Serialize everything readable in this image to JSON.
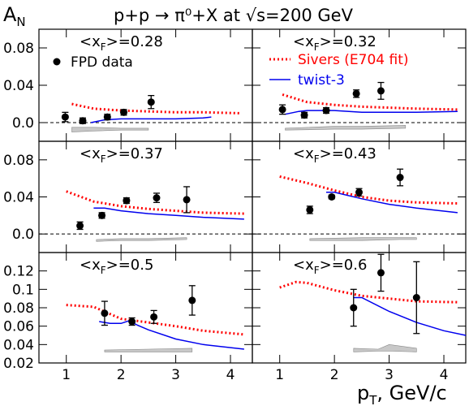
{
  "figure": {
    "ylabel": "A",
    "ylabel_sub": "N",
    "title": "p+p → π⁰+X at √s=200 GeV",
    "xlabel": "p",
    "xlabel_sub": "T",
    "xlabel_unit": ", GeV/c",
    "colors": {
      "data": "#000000",
      "sivers": "#ff0000",
      "twist3": "#0000ee",
      "band": "#c8c8c8"
    },
    "legend": {
      "data_label": "FPD data",
      "sivers_label": "Sivers (E704 fit)",
      "twist3_label": "twist-3"
    }
  },
  "chart_data": [
    {
      "type": "scatter",
      "panel": "top-left",
      "label_prefix": "<x",
      "label_sub": "F",
      "label_value": ">=0.28",
      "xlim": [
        0.5,
        4.4
      ],
      "ylim": [
        -0.02,
        0.1
      ],
      "yticks": [
        "0.0",
        "0.04",
        "0.08"
      ],
      "ytick_values": [
        0.0,
        0.04,
        0.08
      ],
      "xticks": [],
      "xtick_values": [
        1,
        2,
        3,
        4
      ],
      "zero_line": true,
      "points": {
        "x": [
          0.98,
          1.3,
          1.75,
          2.05,
          2.55
        ],
        "y": [
          0.006,
          0.002,
          0.006,
          0.011,
          0.022
        ],
        "err": [
          0.005,
          0.003,
          0.003,
          0.003,
          0.007
        ]
      },
      "sivers": {
        "x": [
          1.1,
          1.5,
          2.0,
          2.5,
          3.0,
          3.5,
          4.2
        ],
        "y": [
          0.02,
          0.015,
          0.013,
          0.012,
          0.011,
          0.011,
          0.01
        ]
      },
      "twist3": {
        "x": [
          1.45,
          1.7,
          2.0,
          2.5,
          3.0,
          3.5,
          3.65
        ],
        "y": [
          0.0,
          0.003,
          0.004,
          0.004,
          0.004,
          0.005,
          0.006
        ]
      },
      "band": {
        "x": [
          1.1,
          1.5,
          2.0,
          2.5
        ],
        "lower": [
          -0.01,
          -0.009,
          -0.008,
          -0.008
        ],
        "upper": [
          -0.005,
          -0.005,
          -0.006,
          -0.006
        ]
      }
    },
    {
      "type": "scatter",
      "panel": "top-right",
      "label_prefix": "<x",
      "label_sub": "F",
      "label_value": ">=0.32",
      "xlim": [
        0.5,
        4.4
      ],
      "ylim": [
        -0.02,
        0.1
      ],
      "yticks": [],
      "ytick_values": [
        0.0,
        0.04,
        0.08
      ],
      "xticks": [],
      "xtick_values": [
        1,
        2,
        3,
        4
      ],
      "zero_line": true,
      "points": {
        "x": [
          1.05,
          1.45,
          1.85,
          2.4,
          2.85
        ],
        "y": [
          0.014,
          0.008,
          0.013,
          0.031,
          0.034
        ],
        "err": [
          0.005,
          0.003,
          0.003,
          0.004,
          0.009
        ]
      },
      "sivers": {
        "x": [
          1.05,
          1.5,
          2.0,
          2.5,
          3.0,
          3.5,
          4.25
        ],
        "y": [
          0.03,
          0.022,
          0.019,
          0.017,
          0.016,
          0.015,
          0.014
        ]
      },
      "twist3": {
        "x": [
          1.1,
          1.35,
          1.5,
          2.0,
          2.5,
          3.0,
          3.5,
          4.25
        ],
        "y": [
          0.009,
          0.012,
          0.013,
          0.013,
          0.011,
          0.011,
          0.011,
          0.012
        ]
      },
      "band": {
        "x": [
          1.1,
          2.0,
          2.5,
          3.3
        ],
        "lower": [
          -0.008,
          -0.007,
          -0.007,
          -0.006
        ],
        "upper": [
          -0.006,
          -0.004,
          -0.004,
          -0.003
        ]
      }
    },
    {
      "type": "scatter",
      "panel": "middle-left",
      "label_prefix": "<x",
      "label_sub": "F",
      "label_value": ">=0.37",
      "xlim": [
        0.5,
        4.4
      ],
      "ylim": [
        -0.02,
        0.1
      ],
      "yticks": [
        "0.0",
        "0.04",
        "0.08"
      ],
      "ytick_values": [
        0.0,
        0.04,
        0.08
      ],
      "xticks": [],
      "xtick_values": [
        1,
        2,
        3,
        4
      ],
      "zero_line": true,
      "points": {
        "x": [
          1.25,
          1.65,
          2.1,
          2.65,
          3.2
        ],
        "y": [
          0.009,
          0.02,
          0.036,
          0.039,
          0.037
        ],
        "err": [
          0.004,
          0.003,
          0.003,
          0.005,
          0.014
        ]
      },
      "sivers": {
        "x": [
          1.0,
          1.5,
          2.0,
          2.5,
          3.0,
          3.5,
          4.25
        ],
        "y": [
          0.046,
          0.035,
          0.03,
          0.027,
          0.025,
          0.023,
          0.022
        ]
      },
      "twist3": {
        "x": [
          1.5,
          1.7,
          2.0,
          2.5,
          3.0,
          3.5,
          4.25
        ],
        "y": [
          0.028,
          0.028,
          0.025,
          0.022,
          0.02,
          0.018,
          0.016
        ]
      },
      "band": {
        "x": [
          1.55,
          2.0,
          2.5,
          3.2
        ],
        "lower": [
          -0.008,
          -0.007,
          -0.007,
          -0.006
        ],
        "upper": [
          -0.006,
          -0.005,
          -0.005,
          -0.004
        ]
      }
    },
    {
      "type": "scatter",
      "panel": "middle-right",
      "label_prefix": "<x",
      "label_sub": "F",
      "label_value": ">=0.43",
      "xlim": [
        0.5,
        4.4
      ],
      "ylim": [
        -0.02,
        0.1
      ],
      "yticks": [],
      "ytick_values": [
        0.0,
        0.04,
        0.08
      ],
      "xticks": [],
      "xtick_values": [
        1,
        2,
        3,
        4
      ],
      "zero_line": true,
      "points": {
        "x": [
          1.55,
          1.95,
          2.45,
          3.2
        ],
        "y": [
          0.026,
          0.04,
          0.045,
          0.061
        ],
        "err": [
          0.004,
          0.002,
          0.004,
          0.009
        ]
      },
      "sivers": {
        "x": [
          1.0,
          1.5,
          2.0,
          2.5,
          3.0,
          3.5,
          4.25
        ],
        "y": [
          0.062,
          0.055,
          0.047,
          0.04,
          0.036,
          0.034,
          0.033
        ]
      },
      "twist3": {
        "x": [
          1.85,
          2.0,
          2.5,
          3.0,
          3.5,
          4.25
        ],
        "y": [
          0.045,
          0.045,
          0.038,
          0.032,
          0.028,
          0.023
        ]
      },
      "band": {
        "x": [
          1.55,
          2.5,
          3.2,
          3.5
        ],
        "lower": [
          -0.007,
          -0.007,
          -0.006,
          -0.006
        ],
        "upper": [
          -0.005,
          -0.004,
          -0.004,
          -0.004
        ]
      }
    },
    {
      "type": "scatter",
      "panel": "bottom-left",
      "label_prefix": "<x",
      "label_sub": "F",
      "label_value": ">=0.5",
      "xlim": [
        0.5,
        4.4
      ],
      "ylim": [
        0.02,
        0.14
      ],
      "yticks": [
        "0.02",
        "0.04",
        "0.06",
        "0.08",
        "0.1",
        "0.12"
      ],
      "ytick_values": [
        0.02,
        0.04,
        0.06,
        0.08,
        0.1,
        0.12
      ],
      "xticks": [
        "1",
        "2",
        "3",
        "4"
      ],
      "xtick_values": [
        1,
        2,
        3,
        4
      ],
      "zero_line": false,
      "points": {
        "x": [
          1.7,
          2.2,
          2.6,
          3.3
        ],
        "y": [
          0.074,
          0.065,
          0.07,
          0.088
        ],
        "err": [
          0.013,
          0.004,
          0.007,
          0.016
        ]
      },
      "sivers": {
        "x": [
          1.0,
          1.5,
          2.0,
          2.5,
          3.0,
          3.5,
          4.25
        ],
        "y": [
          0.083,
          0.081,
          0.068,
          0.064,
          0.06,
          0.055,
          0.051
        ]
      },
      "twist3": {
        "x": [
          1.6,
          1.8,
          2.0,
          2.15,
          2.3,
          2.5,
          3.0,
          3.5,
          4.25
        ],
        "y": [
          0.065,
          0.063,
          0.063,
          0.066,
          0.061,
          0.056,
          0.046,
          0.04,
          0.035
        ]
      },
      "band": {
        "x": [
          1.7,
          2.5,
          3.3
        ],
        "lower": [
          0.032,
          0.032,
          0.032
        ],
        "upper": [
          0.034,
          0.035,
          0.036
        ]
      }
    },
    {
      "type": "scatter",
      "panel": "bottom-right",
      "label_prefix": "<x",
      "label_sub": "F",
      "label_value": ">=0.6",
      "xlim": [
        0.5,
        4.4
      ],
      "ylim": [
        0.02,
        0.14
      ],
      "yticks": [],
      "ytick_values": [
        0.02,
        0.04,
        0.06,
        0.08,
        0.1,
        0.12
      ],
      "xticks": [
        "1",
        "2",
        "3",
        "4"
      ],
      "xtick_values": [
        1,
        2,
        3,
        4
      ],
      "zero_line": false,
      "points": {
        "x": [
          2.35,
          2.85,
          3.5
        ],
        "y": [
          0.08,
          0.118,
          0.091
        ],
        "err": [
          0.02,
          0.02,
          0.039
        ]
      },
      "sivers": {
        "x": [
          1.0,
          1.3,
          1.5,
          2.0,
          2.5,
          3.0,
          3.5,
          4.25
        ],
        "y": [
          0.102,
          0.108,
          0.107,
          0.099,
          0.093,
          0.09,
          0.087,
          0.086
        ]
      },
      "twist3": {
        "x": [
          2.35,
          2.5,
          3.0,
          3.5,
          4.0,
          4.4
        ],
        "y": [
          0.091,
          0.091,
          0.076,
          0.064,
          0.055,
          0.05
        ]
      },
      "band": {
        "x": [
          2.35,
          2.8,
          3.0,
          3.5
        ],
        "lower": [
          0.032,
          0.033,
          0.033,
          0.032
        ],
        "upper": [
          0.036,
          0.035,
          0.04,
          0.036
        ]
      }
    }
  ]
}
